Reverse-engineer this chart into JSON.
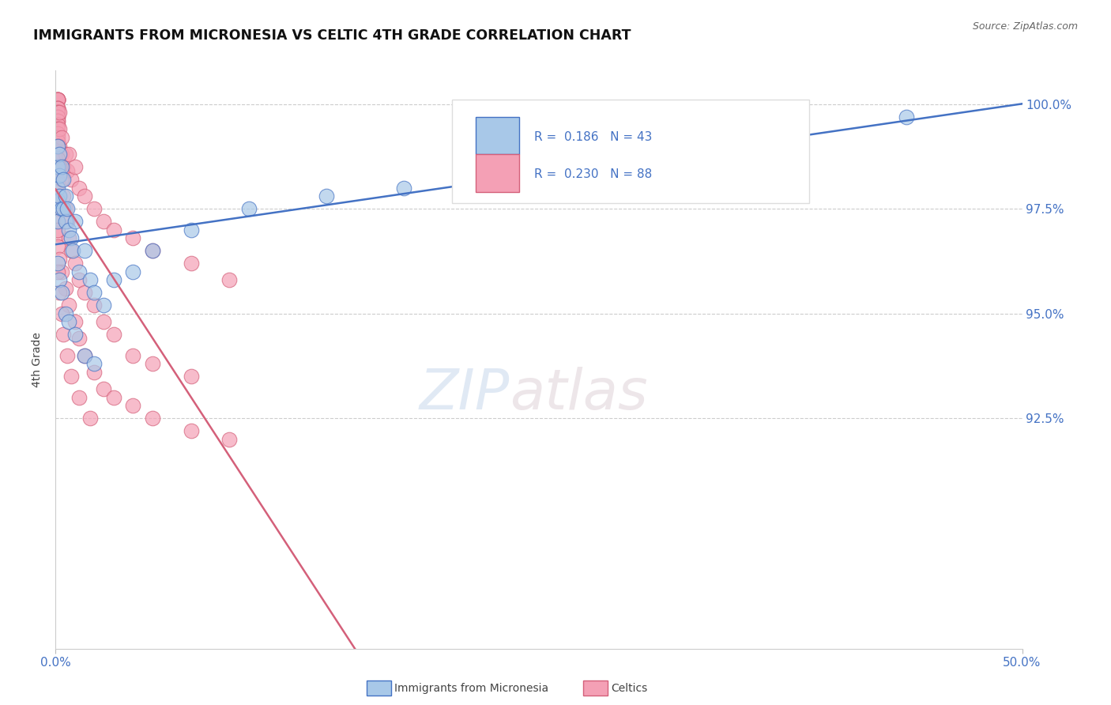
{
  "title": "IMMIGRANTS FROM MICRONESIA VS CELTIC 4TH GRADE CORRELATION CHART",
  "source": "Source: ZipAtlas.com",
  "ylabel": "4th Grade",
  "xlim": [
    0.0,
    0.5
  ],
  "ylim": [
    0.87,
    1.008
  ],
  "yticks": [
    0.925,
    0.95,
    0.975,
    1.0
  ],
  "ytick_labels": [
    "92.5%",
    "95.0%",
    "97.5%",
    "100.0%"
  ],
  "xtick_labels": [
    "0.0%",
    "50.0%"
  ],
  "legend_r_blue": "0.186",
  "legend_n_blue": "43",
  "legend_r_pink": "0.230",
  "legend_n_pink": "88",
  "color_blue": "#a8c8e8",
  "color_pink": "#f4a0b5",
  "trendline_blue": "#4472c4",
  "trendline_pink": "#d4607a",
  "watermark_zip": "ZIP",
  "watermark_atlas": "atlas",
  "blue_x": [
    0.001,
    0.001,
    0.001,
    0.001,
    0.001,
    0.002,
    0.002,
    0.002,
    0.003,
    0.003,
    0.004,
    0.004,
    0.005,
    0.005,
    0.006,
    0.007,
    0.008,
    0.009,
    0.01,
    0.012,
    0.015,
    0.018,
    0.02,
    0.025,
    0.03,
    0.04,
    0.05,
    0.07,
    0.1,
    0.14,
    0.18,
    0.23,
    0.29,
    0.36,
    0.44,
    0.001,
    0.002,
    0.003,
    0.005,
    0.007,
    0.01,
    0.015,
    0.02
  ],
  "blue_y": [
    0.99,
    0.985,
    0.98,
    0.977,
    0.972,
    0.988,
    0.983,
    0.978,
    0.985,
    0.975,
    0.982,
    0.975,
    0.978,
    0.972,
    0.975,
    0.97,
    0.968,
    0.965,
    0.972,
    0.96,
    0.965,
    0.958,
    0.955,
    0.952,
    0.958,
    0.96,
    0.965,
    0.97,
    0.975,
    0.978,
    0.98,
    0.985,
    0.988,
    0.992,
    0.997,
    0.962,
    0.958,
    0.955,
    0.95,
    0.948,
    0.945,
    0.94,
    0.938
  ],
  "pink_x": [
    0.001,
    0.001,
    0.001,
    0.001,
    0.001,
    0.001,
    0.001,
    0.001,
    0.001,
    0.001,
    0.001,
    0.001,
    0.001,
    0.001,
    0.001,
    0.001,
    0.001,
    0.001,
    0.001,
    0.001,
    0.002,
    0.002,
    0.002,
    0.003,
    0.003,
    0.004,
    0.005,
    0.006,
    0.007,
    0.008,
    0.01,
    0.012,
    0.015,
    0.02,
    0.025,
    0.03,
    0.04,
    0.05,
    0.07,
    0.09,
    0.001,
    0.001,
    0.001,
    0.001,
    0.001,
    0.001,
    0.001,
    0.001,
    0.002,
    0.003,
    0.004,
    0.005,
    0.006,
    0.007,
    0.008,
    0.01,
    0.012,
    0.015,
    0.02,
    0.025,
    0.03,
    0.04,
    0.05,
    0.07,
    0.001,
    0.001,
    0.002,
    0.003,
    0.005,
    0.007,
    0.01,
    0.012,
    0.015,
    0.02,
    0.025,
    0.03,
    0.04,
    0.05,
    0.07,
    0.09,
    0.001,
    0.002,
    0.003,
    0.004,
    0.006,
    0.008,
    0.012,
    0.018
  ],
  "pink_y": [
    1.001,
    1.001,
    1.001,
    1.001,
    1.001,
    1.001,
    0.999,
    0.999,
    0.999,
    0.998,
    0.998,
    0.997,
    0.997,
    0.996,
    0.996,
    0.995,
    0.994,
    0.993,
    0.992,
    0.991,
    0.998,
    0.994,
    0.99,
    0.992,
    0.988,
    0.985,
    0.988,
    0.984,
    0.988,
    0.982,
    0.985,
    0.98,
    0.978,
    0.975,
    0.972,
    0.97,
    0.968,
    0.965,
    0.962,
    0.958,
    0.99,
    0.987,
    0.984,
    0.981,
    0.978,
    0.975,
    0.972,
    0.969,
    0.985,
    0.982,
    0.978,
    0.975,
    0.972,
    0.968,
    0.965,
    0.962,
    0.958,
    0.955,
    0.952,
    0.948,
    0.945,
    0.94,
    0.938,
    0.935,
    0.97,
    0.966,
    0.963,
    0.96,
    0.956,
    0.952,
    0.948,
    0.944,
    0.94,
    0.936,
    0.932,
    0.93,
    0.928,
    0.925,
    0.922,
    0.92,
    0.96,
    0.955,
    0.95,
    0.945,
    0.94,
    0.935,
    0.93,
    0.925
  ]
}
